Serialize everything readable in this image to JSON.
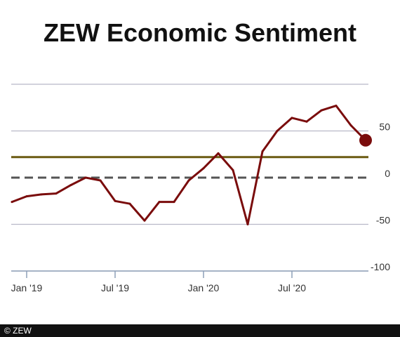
{
  "chart_data": {
    "type": "line",
    "title": "ZEW Economic Sentiment",
    "x": [
      "2018-12",
      "2019-01",
      "2019-02",
      "2019-03",
      "2019-04",
      "2019-05",
      "2019-06",
      "2019-07",
      "2019-08",
      "2019-09",
      "2019-10",
      "2019-11",
      "2019-12",
      "2020-01",
      "2020-02",
      "2020-03",
      "2020-04",
      "2020-05",
      "2020-06",
      "2020-07",
      "2020-08",
      "2020-09",
      "2020-10",
      "2020-11",
      "2020-12"
    ],
    "x_tick_labels": [
      "Jan '19",
      "Jul '19",
      "Jan '20",
      "Jul '20"
    ],
    "x_tick_dates": [
      "2019-01",
      "2019-07",
      "2020-01",
      "2020-07"
    ],
    "series": [
      {
        "values": [
          -26,
          -20,
          -18,
          -17,
          -8,
          0,
          -3,
          -25,
          -28,
          -46,
          -26,
          -26,
          -3,
          10,
          26,
          8,
          -50,
          28,
          50,
          64,
          60,
          72,
          77,
          56,
          40
        ],
        "color": "#7a0c0c"
      }
    ],
    "reference_lines": [
      {
        "value": 22,
        "style": "solid",
        "color": "#6b5a12"
      },
      {
        "value": 0,
        "style": "dashed",
        "color": "#555555"
      }
    ],
    "y_tick_labels": [
      "50",
      "0",
      "-50",
      "-100"
    ],
    "y_tick_values": [
      50,
      0,
      -50,
      -100
    ],
    "ylim": [
      -100,
      100
    ],
    "grid": true,
    "last_point_marker": true
  },
  "footer": {
    "copyright": "© ZEW"
  }
}
